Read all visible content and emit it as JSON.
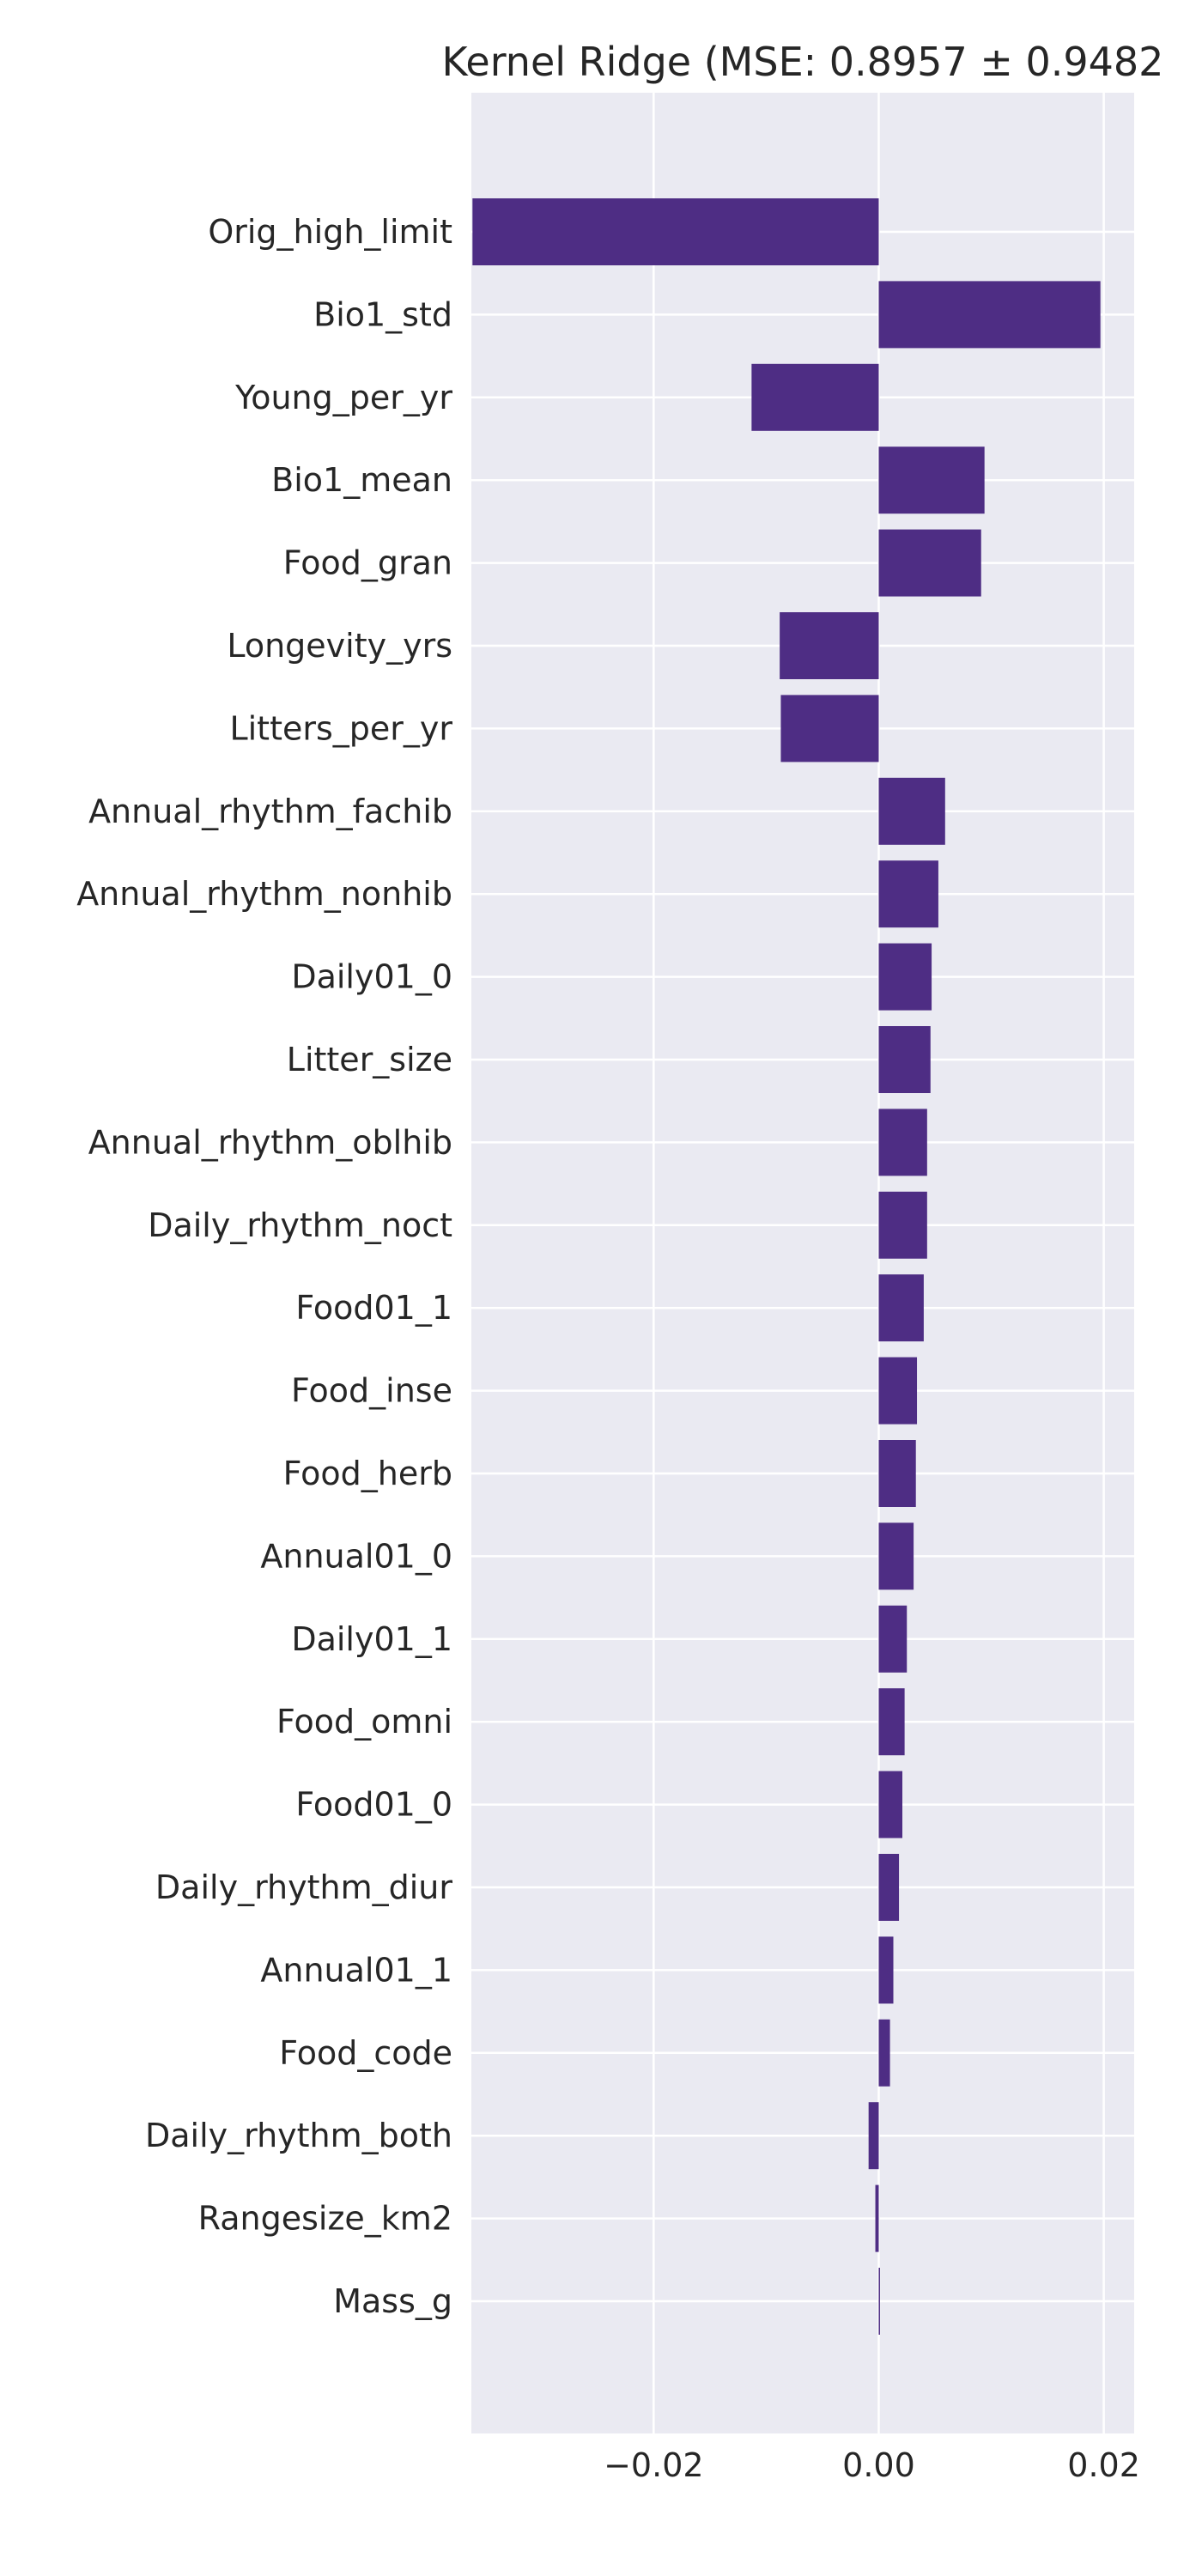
{
  "chart_data": {
    "type": "bar",
    "orientation": "horizontal",
    "title": "Kernel Ridge (MSE: 0.8957 ± 0.9482",
    "xlabel": "",
    "ylabel": "",
    "xlim": [
      -0.0362,
      0.0227
    ],
    "xticks": [
      -0.02,
      0.0,
      0.02
    ],
    "xtick_labels": [
      "−0.02",
      "0.00",
      "0.02"
    ],
    "grid": true,
    "bar_color": "#4e2d84",
    "background_color": "#eaeaf2",
    "categories": [
      "Orig_high_limit",
      "Bio1_std",
      "Young_per_yr",
      "Bio1_mean",
      "Food_gran",
      "Longevity_yrs",
      "Litters_per_yr",
      "Annual_rhythm_fachib",
      "Annual_rhythm_nonhib",
      "Daily01_0",
      "Litter_size",
      "Annual_rhythm_oblhib",
      "Daily_rhythm_noct",
      "Food01_1",
      "Food_inse",
      "Food_herb",
      "Annual01_0",
      "Daily01_1",
      "Food_omni",
      "Food01_0",
      "Daily_rhythm_diur",
      "Annual01_1",
      "Food_code",
      "Daily_rhythm_both",
      "Rangesize_km2",
      "Mass_g"
    ],
    "values": [
      -0.0361,
      0.0197,
      -0.0113,
      0.0094,
      0.0091,
      -0.0088,
      -0.0087,
      0.0059,
      0.0053,
      0.0047,
      0.0046,
      0.0043,
      0.0043,
      0.004,
      0.0034,
      0.0033,
      0.0031,
      0.0025,
      0.0023,
      0.0021,
      0.0018,
      0.0013,
      0.001,
      -0.0009,
      -0.0003,
      0.0001
    ]
  }
}
